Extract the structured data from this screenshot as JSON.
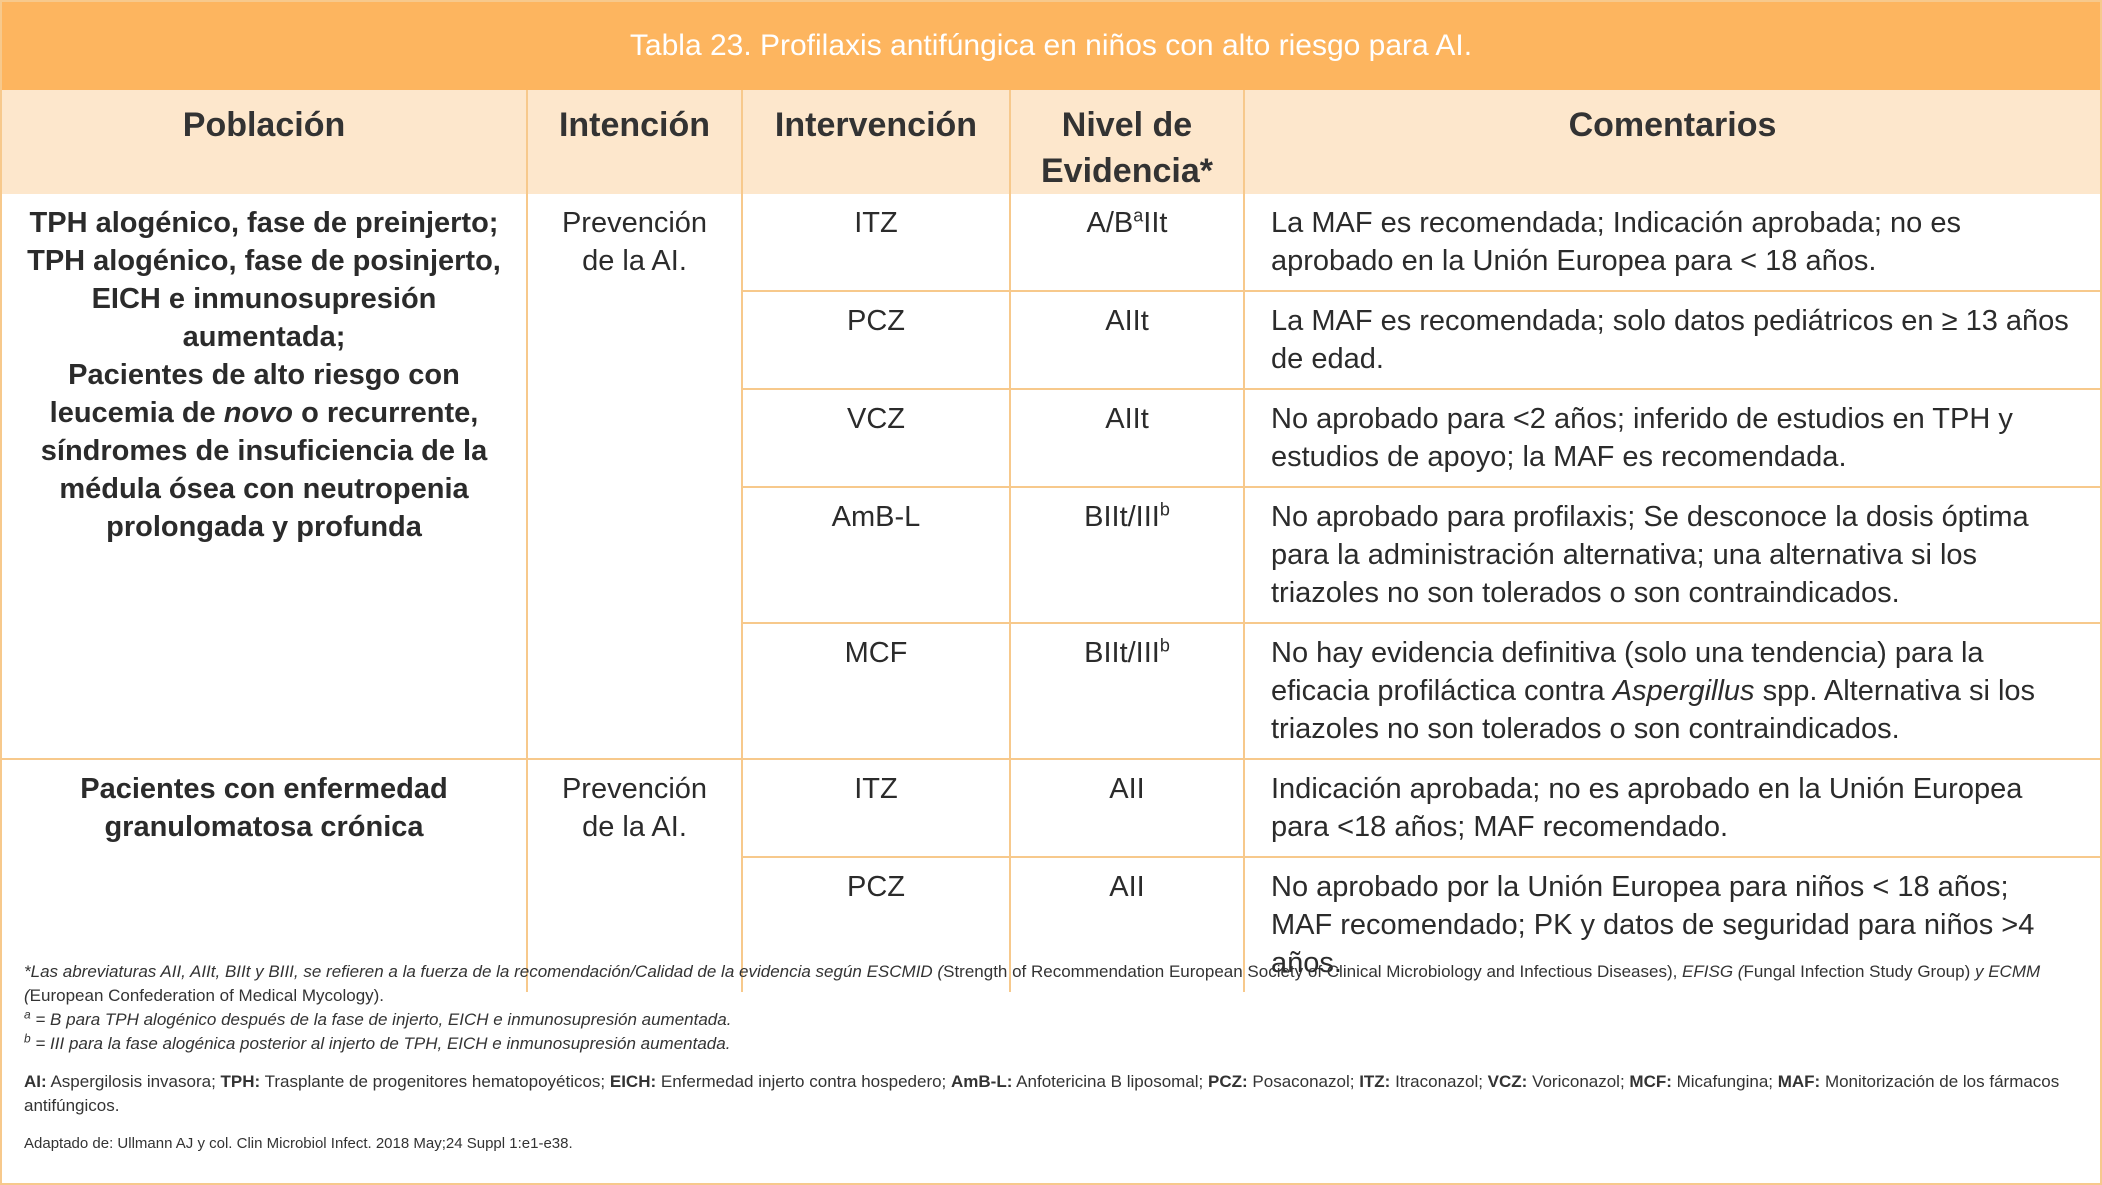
{
  "title": "Tabla 23. Profilaxis antifúngica en niños con alto riesgo para AI.",
  "headers": {
    "poblacion": "Población",
    "intencion": "Intención",
    "intervencion": "Intervención",
    "nivel_line1": "Nivel de",
    "nivel_line2": "Evidencia*",
    "comentarios": "Comentarios"
  },
  "group1": {
    "poblacion_line1": "TPH alogénico, fase de preinjerto; TPH alogénico, fase de posinjerto, EICH e inmunosupresión aumentada;",
    "poblacion_line2_pre": "Pacientes de alto riesgo con leucemia de ",
    "poblacion_line2_italic": "novo",
    "poblacion_line2_post": " o recurrente, síndromes de insuficiencia de la médula ósea con neutropenia prolongada y profunda",
    "intencion": "Prevención de la AI.",
    "rows": [
      {
        "intervencion": "ITZ",
        "nivel_main": "A/B",
        "nivel_sup": "a",
        "nivel_end": "IIt",
        "comentario": "La MAF es recomendada; Indicación aprobada; no es aprobado en la Unión Europea para < 18 años."
      },
      {
        "intervencion": "PCZ",
        "nivel_main": "AIIt",
        "nivel_sup": "",
        "nivel_end": "",
        "comentario": "La MAF es recomendada; solo datos pediátricos  en  ≥ 13 años de edad."
      },
      {
        "intervencion": "VCZ",
        "nivel_main": "AIIt",
        "nivel_sup": "",
        "nivel_end": "",
        "comentario": "No aprobado para  <2 años;  inferido de estudios en  TPH y estudios de apoyo; la MAF es recomendada."
      },
      {
        "intervencion": "AmB-L",
        "nivel_main": "BIIt/III",
        "nivel_sup": "b",
        "nivel_end": "",
        "comentario": "No aprobado para profilaxis; Se desconoce la dosis óptima para la administración alternativa; una alternativa si los triazoles no son tolerados o son contraindicados."
      },
      {
        "intervencion": "MCF",
        "nivel_main": "BIIt/III",
        "nivel_sup": "b",
        "nivel_end": "",
        "comentario_pre": "No hay evidencia definitiva (solo una tendencia) para la eficacia profiláctica contra ",
        "comentario_italic": "Aspergillus",
        "comentario_post": " spp. Alternativa si los triazoles no son tolerados o son contraindicados."
      }
    ]
  },
  "group2": {
    "poblacion": "Pacientes con enfermedad granulomatosa crónica",
    "intencion": "Prevención de la AI.",
    "rows": [
      {
        "intervencion": "ITZ",
        "nivel": "AII",
        "comentario": "Indicación aprobada; no es aprobado en la Unión Europea para <18 años; MAF recomendado."
      },
      {
        "intervencion": "PCZ",
        "nivel": "AII",
        "comentario": "No aprobado por la Unión Europea para niños < 18 años; MAF recomendado; PK y datos de seguridad para niños >4 años."
      }
    ]
  },
  "footnotes": {
    "star_pre_italic": "*Las abreviaturas AII, AIIt, BIIt y BIII, se refieren a la fuerza de la recomendación/Calidad de la evidencia según ESCMID (",
    "star_normal1": "Strength of Recommendation European Society of Clinical Microbiology and Infectious Diseases), ",
    "star_italic2": "EFISG (",
    "star_normal2": "Fungal Infection Study Group) ",
    "star_italic3": "y ECMM (",
    "star_normal3": "European Confederation of Medical Mycology).",
    "a_sup": "a",
    "a_text": " = B para TPH alogénico después de la fase de injerto, EICH e inmunosupresión aumentada.",
    "b_sup": "b",
    "b_text": " = III para la fase alogénica posterior al injerto de TPH, EICH e inmunosupresión aumentada.",
    "abbr": [
      {
        "k": "AI:",
        "v": " Aspergilosis invasora; "
      },
      {
        "k": "TPH:",
        "v": " Trasplante de progenitores hematopoyéticos; "
      },
      {
        "k": "EICH:",
        "v": " Enfermedad injerto contra hospedero; "
      },
      {
        "k": "AmB-L:",
        "v": " Anfotericina B liposomal; "
      },
      {
        "k": "PCZ:",
        "v": " Posaconazol; "
      },
      {
        "k": "ITZ:",
        "v": " Itraconazol; "
      },
      {
        "k": "VCZ:",
        "v": " Voriconazol; "
      },
      {
        "k": "MCF:",
        "v": " Micafungina; "
      },
      {
        "k": "MAF:",
        "v": " Monitorización de los fármacos antifúngicos."
      }
    ],
    "source": "Adaptado de: Ullmann AJ y col. Clin Microbiol Infect. 2018 May;24 Suppl 1:e1-e38."
  }
}
